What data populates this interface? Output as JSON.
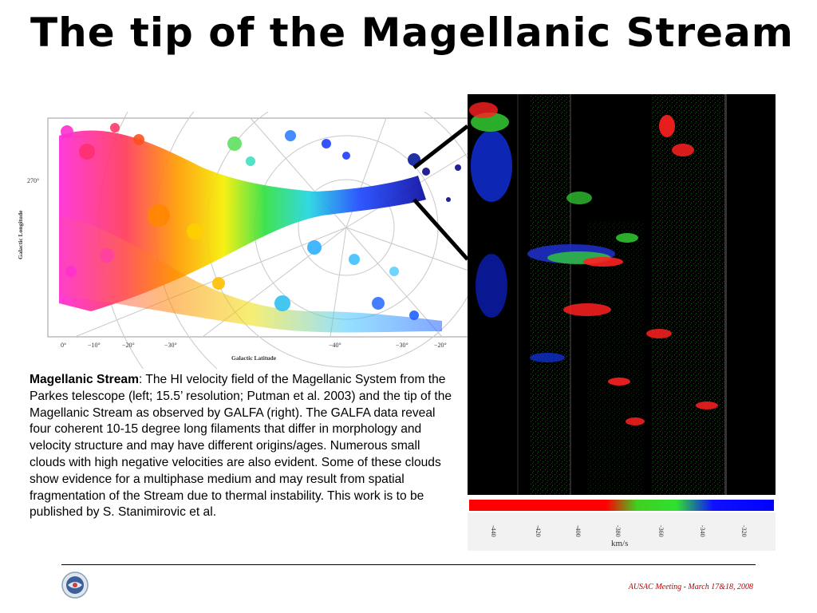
{
  "title": "The tip of the Magellanic Stream",
  "left_figure": {
    "y_axis_title": "Galactic Longitude",
    "y_tick": "270°",
    "x_axis_title": "Galactic Latitude",
    "x_ticks_left": [
      "0°",
      "−10°",
      "−20°",
      "−30°"
    ],
    "x_ticks_right": [
      "−40°",
      "−30°",
      "−20°"
    ]
  },
  "right_figure": {
    "colorbar_ticks": [
      "-440",
      "-420",
      "-400",
      "-380",
      "-360",
      "-340",
      "-320"
    ],
    "colorbar_label": "km/s"
  },
  "caption": {
    "lead": "Magellanic Stream",
    "body": ":  The HI velocity field of the Magellanic System from the Parkes telescope (left; 15.5’ resolution; Putman et al. 2003) and the tip of the Magellanic Stream as observed by GALFA (right).  The GALFA data reveal four coherent 10-15 degree long filaments that differ in morphology and velocity structure and may have different origins/ages.  Numerous small clouds with high negative velocities are also evident.  Some of these clouds show evidence for a multiphase medium and may result from spatial fragmentation of the Stream due to thermal instability.  This work is to be published by S. Stanimirovic et al."
  },
  "footer": {
    "text": "AUSAC Meeting - March 17&18, 2008"
  },
  "colors": {
    "footer": "#c00000",
    "rule": "#000000"
  }
}
